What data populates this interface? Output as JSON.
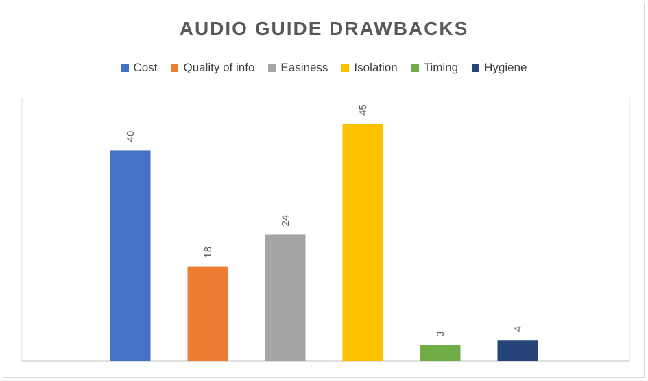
{
  "chart_data": {
    "type": "bar",
    "title": "AUDIO GUIDE DRAWBACKS",
    "categories": [
      "Cost",
      "Quality of info",
      "Easiness",
      "Isolation",
      "Timing",
      "Hygiene"
    ],
    "values": [
      40,
      18,
      24,
      45,
      3,
      4
    ],
    "colors": [
      "#4472c4",
      "#ed7d31",
      "#a5a5a5",
      "#ffc000",
      "#70ad47",
      "#264478"
    ],
    "data_labels": [
      "40",
      "18",
      "24",
      "45",
      "3",
      "4"
    ],
    "ylim": [
      0,
      50
    ],
    "grid": false,
    "legend_position": "top"
  }
}
